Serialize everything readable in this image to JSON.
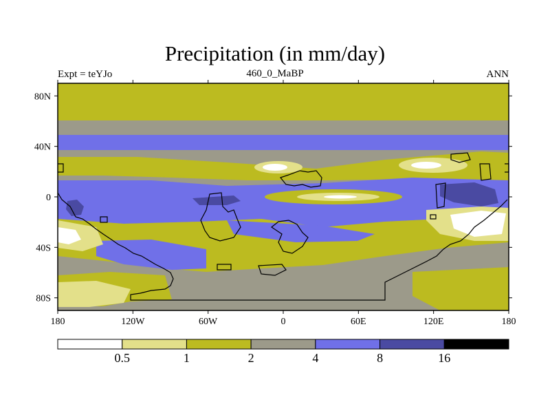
{
  "title": "Precipitation (in mm/day)",
  "subtitle_left": "Expt = teYJo",
  "subtitle_center": "460_0_MaBP",
  "subtitle_right": "ANN",
  "lat_ticks": [
    {
      "value": 80,
      "label": "80N"
    },
    {
      "value": 40,
      "label": "40N"
    },
    {
      "value": 0,
      "label": "0"
    },
    {
      "value": -40,
      "label": "40S"
    },
    {
      "value": -80,
      "label": "80S"
    }
  ],
  "lon_ticks": [
    {
      "value": -180,
      "label": "180"
    },
    {
      "value": -120,
      "label": "120W"
    },
    {
      "value": -60,
      "label": "60W"
    },
    {
      "value": 0,
      "label": "0"
    },
    {
      "value": 60,
      "label": "60E"
    },
    {
      "value": 120,
      "label": "120E"
    },
    {
      "value": 180,
      "label": "180"
    }
  ],
  "colorbar": {
    "colors": [
      "#ffffff",
      "#e3e08a",
      "#bcbb20",
      "#9c9a8a",
      "#7070e8",
      "#4a4aa2",
      "#000000"
    ],
    "boundaries": [
      "0.5",
      "1",
      "2",
      "4",
      "8",
      "16"
    ]
  },
  "palette": {
    "lt05": "#ffffff",
    "b05_1": "#e3e08a",
    "b1_2": "#bcbb20",
    "b2_4": "#9c9a8a",
    "b4_8": "#7070e8",
    "b8_16": "#4a4aa2",
    "gt16": "#000000"
  }
}
